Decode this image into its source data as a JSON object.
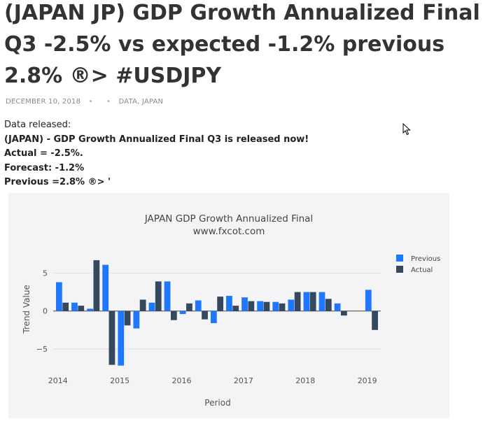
{
  "article": {
    "title": "(JAPAN JP) GDP Growth Annualized Final Q3 -2.5% vs expected -1.2% previous 2.8% ®> #USDJPY",
    "date": "DECEMBER 10, 2018",
    "categories": "DATA, JAPAN",
    "intro": "Data released:",
    "headline": "(JAPAN) - GDP Growth Annualized Final Q3 is released now!",
    "actual": "Actual = -2.5%.",
    "forecast": "Forecast: -1.2%",
    "previous": "Previous =2.8% ®> '"
  },
  "colors": {
    "previous": "#1f77ff",
    "actual": "#34495e",
    "chart_bg": "#f4f4f6",
    "plot_bg": "#ffffff"
  },
  "chart_data": {
    "type": "bar",
    "title": "JAPAN GDP Growth Annualized Final",
    "subtitle": "www.fxcot.com",
    "xlabel": "Period",
    "ylabel": "Trend Value",
    "ylim": [
      -7.5,
      8
    ],
    "yticks": [
      5,
      0,
      -5
    ],
    "ytick_labels": [
      "5",
      "0",
      "−5"
    ],
    "xticks": [
      "2014",
      "2015",
      "2016",
      "2017",
      "2018",
      "2019"
    ],
    "legend_position": "top-right",
    "series": [
      {
        "name": "Previous",
        "values": [
          3.8,
          1.1,
          0.3,
          6.1,
          -7.2,
          -2.3,
          1.1,
          3.9,
          -0.4,
          1.4,
          -1.6,
          2.0,
          1.8,
          1.3,
          1.2,
          1.5,
          2.5,
          2.5,
          1.0,
          null,
          2.8
        ]
      },
      {
        "name": "Actual",
        "values": [
          1.1,
          0.7,
          6.7,
          -7.1,
          -1.9,
          1.5,
          3.9,
          -1.2,
          1.0,
          -1.1,
          1.9,
          0.7,
          1.3,
          1.2,
          1.0,
          2.5,
          2.5,
          1.6,
          -0.6,
          null,
          -2.5
        ]
      }
    ],
    "x": [
      "2014-Q1",
      "2014-Q2",
      "2014-Q3",
      "2014-Q4",
      "2015-Q1",
      "2015-Q2",
      "2015-Q3",
      "2015-Q4",
      "2016-Q1",
      "2016-Q2",
      "2016-Q3",
      "2016-Q4",
      "2017-Q1",
      "2017-Q2",
      "2017-Q3",
      "2017-Q4",
      "2018-Q1",
      "2018-Q2",
      "2018-Q3",
      "2018-Q4",
      "2019-Q1"
    ]
  }
}
